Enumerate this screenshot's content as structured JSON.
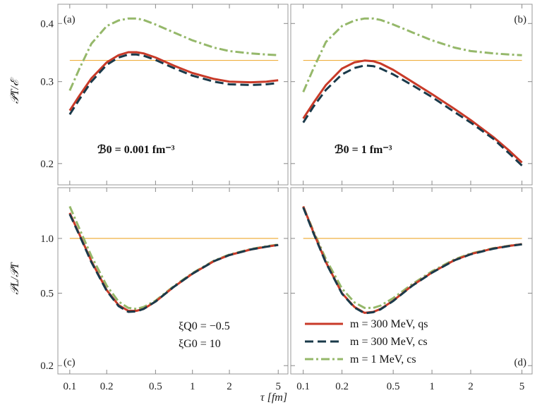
{
  "figure": {
    "xlabel": "τ [fm]",
    "ylabel_top": "𝒫T/ℰ",
    "ylabel_bottom": "𝒫L/𝒫T",
    "annotation_b_left": "ℬ0 = 0.001 fm⁻³",
    "annotation_b_right": "ℬ0 = 1 fm⁻³",
    "annotation_xiq": "ξQ0 = −0.5",
    "annotation_xig": "ξG0 = 10"
  },
  "colors": {
    "qs": "#c83a28",
    "cs300": "#1a3a4a",
    "cs1": "#95b86a",
    "ref": "#f0b040"
  },
  "legend": [
    {
      "label": "m = 300 MeV, qs",
      "series": "qs"
    },
    {
      "label": "m = 300 MeV, cs",
      "series": "cs300"
    },
    {
      "label": "m = 1 MeV, cs",
      "series": "cs1"
    }
  ],
  "chart_data": [
    {
      "panel": "(a)",
      "type": "line",
      "xscale": "log",
      "yscale": "log",
      "xlim": [
        0.08,
        6
      ],
      "ylim": [
        0.18,
        0.44
      ],
      "xticks": [
        "0.1",
        "0.2",
        "0.5",
        "1",
        "2",
        "5"
      ],
      "yticks": [
        "0.2",
        "0.3",
        "0.4"
      ],
      "reference_line": 0.3333,
      "series": [
        {
          "name": "m = 300 MeV, qs",
          "key": "qs",
          "x": [
            0.1,
            0.12,
            0.15,
            0.2,
            0.25,
            0.3,
            0.35,
            0.4,
            0.5,
            0.7,
            1,
            1.5,
            2,
            3,
            4,
            5
          ],
          "y": [
            0.26,
            0.28,
            0.305,
            0.33,
            0.342,
            0.347,
            0.347,
            0.345,
            0.338,
            0.325,
            0.313,
            0.304,
            0.3,
            0.299,
            0.3,
            0.302
          ]
        },
        {
          "name": "m = 300 MeV, cs",
          "key": "cs300",
          "x": [
            0.1,
            0.12,
            0.15,
            0.2,
            0.25,
            0.3,
            0.35,
            0.4,
            0.5,
            0.7,
            1,
            1.5,
            2,
            3,
            4,
            5
          ],
          "y": [
            0.255,
            0.275,
            0.3,
            0.326,
            0.338,
            0.343,
            0.343,
            0.341,
            0.334,
            0.321,
            0.309,
            0.3,
            0.296,
            0.295,
            0.296,
            0.298
          ]
        },
        {
          "name": "m = 1 MeV, cs",
          "key": "cs1",
          "x": [
            0.1,
            0.12,
            0.15,
            0.2,
            0.25,
            0.3,
            0.35,
            0.4,
            0.5,
            0.7,
            1,
            1.5,
            2,
            3,
            4,
            5
          ],
          "y": [
            0.287,
            0.32,
            0.362,
            0.395,
            0.406,
            0.41,
            0.41,
            0.407,
            0.398,
            0.383,
            0.368,
            0.355,
            0.349,
            0.345,
            0.343,
            0.342
          ]
        }
      ]
    },
    {
      "panel": "(b)",
      "type": "line",
      "xscale": "log",
      "yscale": "log",
      "xlim": [
        0.08,
        6
      ],
      "ylim": [
        0.18,
        0.44
      ],
      "xticks": [
        "0.1",
        "0.2",
        "0.5",
        "1",
        "2",
        "5"
      ],
      "yticks": [
        "0.2",
        "0.3",
        "0.4"
      ],
      "reference_line": 0.3333,
      "series": [
        {
          "name": "m = 300 MeV, qs",
          "key": "qs",
          "x": [
            0.1,
            0.12,
            0.15,
            0.2,
            0.25,
            0.3,
            0.35,
            0.4,
            0.5,
            0.7,
            1,
            1.5,
            2,
            3,
            4,
            5
          ],
          "y": [
            0.25,
            0.27,
            0.295,
            0.32,
            0.33,
            0.333,
            0.332,
            0.328,
            0.318,
            0.3,
            0.282,
            0.262,
            0.248,
            0.228,
            0.213,
            0.201
          ]
        },
        {
          "name": "m = 300 MeV, cs",
          "key": "cs300",
          "x": [
            0.1,
            0.12,
            0.15,
            0.2,
            0.25,
            0.3,
            0.35,
            0.4,
            0.5,
            0.7,
            1,
            1.5,
            2,
            3,
            4,
            5
          ],
          "y": [
            0.245,
            0.265,
            0.288,
            0.311,
            0.321,
            0.325,
            0.324,
            0.32,
            0.311,
            0.295,
            0.278,
            0.258,
            0.245,
            0.226,
            0.21,
            0.198
          ]
        },
        {
          "name": "m = 1 MeV, cs",
          "key": "cs1",
          "x": [
            0.1,
            0.12,
            0.15,
            0.2,
            0.25,
            0.3,
            0.35,
            0.4,
            0.5,
            0.7,
            1,
            1.5,
            2,
            3,
            4,
            5
          ],
          "y": [
            0.285,
            0.32,
            0.365,
            0.395,
            0.406,
            0.41,
            0.41,
            0.407,
            0.398,
            0.383,
            0.368,
            0.355,
            0.349,
            0.345,
            0.343,
            0.342
          ]
        }
      ]
    },
    {
      "panel": "(c)",
      "type": "line",
      "xscale": "log",
      "yscale": "log",
      "xlim": [
        0.08,
        6
      ],
      "ylim": [
        0.18,
        1.9
      ],
      "xticks": [
        "0.1",
        "0.2",
        "0.5",
        "1",
        "2",
        "5"
      ],
      "yticks": [
        "0.2",
        "0.5",
        "1.0"
      ],
      "reference_line": 1.0,
      "series": [
        {
          "name": "m = 300 MeV, qs",
          "key": "qs",
          "x": [
            0.1,
            0.12,
            0.15,
            0.2,
            0.25,
            0.3,
            0.35,
            0.4,
            0.5,
            0.7,
            1,
            1.5,
            2,
            3,
            4,
            5
          ],
          "y": [
            1.38,
            1.05,
            0.75,
            0.52,
            0.43,
            0.4,
            0.4,
            0.41,
            0.45,
            0.54,
            0.64,
            0.75,
            0.81,
            0.87,
            0.9,
            0.92
          ]
        },
        {
          "name": "m = 300 MeV, cs",
          "key": "cs300",
          "x": [
            0.1,
            0.12,
            0.15,
            0.2,
            0.25,
            0.3,
            0.35,
            0.4,
            0.5,
            0.7,
            1,
            1.5,
            2,
            3,
            4,
            5
          ],
          "y": [
            1.36,
            1.04,
            0.74,
            0.515,
            0.425,
            0.395,
            0.397,
            0.41,
            0.45,
            0.54,
            0.64,
            0.75,
            0.81,
            0.87,
            0.9,
            0.92
          ]
        },
        {
          "name": "m = 1 MeV, cs",
          "key": "cs1",
          "x": [
            0.1,
            0.12,
            0.15,
            0.2,
            0.25,
            0.3,
            0.35,
            0.4,
            0.5,
            0.7,
            1,
            1.5,
            2,
            3,
            4,
            5
          ],
          "y": [
            1.5,
            1.13,
            0.8,
            0.55,
            0.45,
            0.415,
            0.41,
            0.42,
            0.455,
            0.545,
            0.645,
            0.755,
            0.815,
            0.875,
            0.905,
            0.925
          ]
        }
      ]
    },
    {
      "panel": "(d)",
      "type": "line",
      "xscale": "log",
      "yscale": "log",
      "xlim": [
        0.08,
        6
      ],
      "ylim": [
        0.18,
        1.9
      ],
      "xticks": [
        "0.1",
        "0.2",
        "0.5",
        "1",
        "2",
        "5"
      ],
      "yticks": [
        "0.2",
        "0.5",
        "1.0"
      ],
      "reference_line": 1.0,
      "series": [
        {
          "name": "m = 300 MeV, qs",
          "key": "qs",
          "x": [
            0.1,
            0.12,
            0.15,
            0.2,
            0.25,
            0.3,
            0.35,
            0.4,
            0.5,
            0.7,
            1,
            1.5,
            2,
            3,
            4,
            5
          ],
          "y": [
            1.5,
            1.08,
            0.74,
            0.5,
            0.42,
            0.39,
            0.395,
            0.41,
            0.455,
            0.55,
            0.65,
            0.76,
            0.82,
            0.88,
            0.91,
            0.93
          ]
        },
        {
          "name": "m = 300 MeV, cs",
          "key": "cs300",
          "x": [
            0.1,
            0.12,
            0.15,
            0.2,
            0.25,
            0.3,
            0.35,
            0.4,
            0.5,
            0.7,
            1,
            1.5,
            2,
            3,
            4,
            5
          ],
          "y": [
            1.48,
            1.07,
            0.735,
            0.497,
            0.417,
            0.388,
            0.393,
            0.408,
            0.453,
            0.548,
            0.648,
            0.758,
            0.818,
            0.878,
            0.908,
            0.928
          ]
        },
        {
          "name": "m = 1 MeV, cs",
          "key": "cs1",
          "x": [
            0.1,
            0.12,
            0.15,
            0.2,
            0.25,
            0.3,
            0.35,
            0.4,
            0.5,
            0.7,
            1,
            1.5,
            2,
            3,
            4,
            5
          ],
          "y": [
            1.5,
            1.1,
            0.77,
            0.53,
            0.445,
            0.415,
            0.415,
            0.428,
            0.47,
            0.56,
            0.66,
            0.768,
            0.826,
            0.884,
            0.912,
            0.932
          ]
        }
      ]
    }
  ]
}
